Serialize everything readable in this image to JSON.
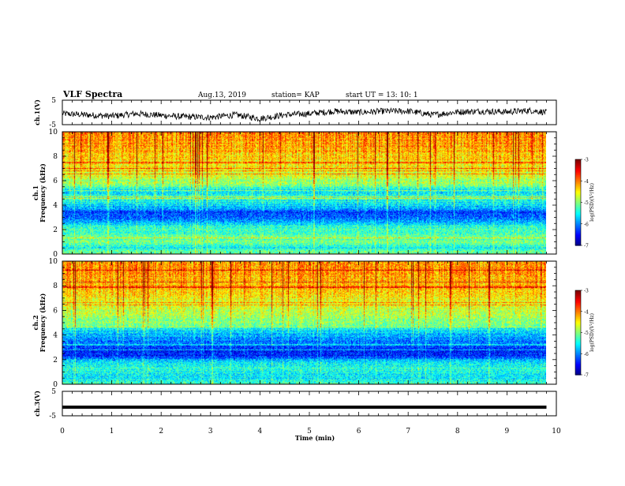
{
  "header": {
    "title": "VLF Spectra",
    "date": "Aug.13, 2019",
    "station": "station= KAP",
    "start_ut": "start  UT  =   13: 10: 1"
  },
  "chart_data": [
    {
      "type": "line",
      "name": "ch1-waveform",
      "ylabel": "ch.1(V)",
      "ylim": [
        -5,
        5
      ],
      "yticks": [
        5,
        -5
      ],
      "xlim": [
        0,
        10
      ],
      "x_extent_min": 9.8,
      "color": "#000000",
      "description_level": [
        [
          0.0,
          -0.5
        ],
        [
          0.5,
          -1.0
        ],
        [
          1.0,
          -1.5
        ],
        [
          1.5,
          -0.5
        ],
        [
          2.0,
          -1.2
        ],
        [
          2.5,
          -1.8
        ],
        [
          3.0,
          -2.0
        ],
        [
          3.5,
          -1.0
        ],
        [
          4.0,
          -2.5
        ],
        [
          4.5,
          -1.0
        ],
        [
          5.0,
          -0.5
        ],
        [
          5.5,
          0.5
        ],
        [
          6.0,
          0.0
        ],
        [
          6.5,
          0.5
        ],
        [
          7.0,
          0.5
        ],
        [
          7.5,
          -1.0
        ],
        [
          8.0,
          0.2
        ],
        [
          8.5,
          0.5
        ],
        [
          9.0,
          0.2
        ],
        [
          9.5,
          0.8
        ],
        [
          9.8,
          0.0
        ]
      ]
    },
    {
      "type": "heatmap",
      "name": "ch1-spectrogram",
      "ylabel": "ch.1",
      "ylabel2": "Frequency  (kHz)",
      "ylim": [
        0,
        10
      ],
      "yticks": [
        0,
        2,
        4,
        6,
        8,
        10
      ],
      "xlim": [
        0,
        10
      ],
      "x_extent_min": 9.8,
      "colorbar": {
        "ticks": [
          -3,
          -4,
          -5,
          -6,
          -7
        ],
        "label": "log(PSD)(V²/Hz)",
        "range": [
          -7,
          -3
        ]
      },
      "band_profile": [
        {
          "f": 0.0,
          "level": -5.0
        },
        {
          "f": 0.6,
          "level": -5.5
        },
        {
          "f": 1.0,
          "level": -5.1
        },
        {
          "f": 1.5,
          "level": -5.2
        },
        {
          "f": 2.2,
          "level": -5.3
        },
        {
          "f": 2.8,
          "level": -5.9
        },
        {
          "f": 3.4,
          "level": -6.3
        },
        {
          "f": 4.0,
          "level": -5.6
        },
        {
          "f": 4.6,
          "level": -5.3
        },
        {
          "f": 5.2,
          "level": -5.6
        },
        {
          "f": 5.8,
          "level": -4.9
        },
        {
          "f": 7.0,
          "level": -4.5
        },
        {
          "f": 8.5,
          "level": -4.2
        },
        {
          "f": 10.0,
          "level": -4.0
        }
      ]
    },
    {
      "type": "heatmap",
      "name": "ch2-spectrogram",
      "ylabel": "ch.2",
      "ylabel2": "Frequency  (kHz)",
      "ylim": [
        0,
        10
      ],
      "yticks": [
        0,
        2,
        4,
        6,
        8,
        10
      ],
      "xlim": [
        0,
        10
      ],
      "x_extent_min": 9.8,
      "colorbar": {
        "ticks": [
          -3,
          -4,
          -5,
          -6,
          -7
        ],
        "label": "log(PSD)(V²/Hz)",
        "range": [
          -7,
          -3
        ]
      },
      "band_profile": [
        {
          "f": 0.0,
          "level": -5.2
        },
        {
          "f": 0.6,
          "level": -5.6
        },
        {
          "f": 1.2,
          "level": -5.4
        },
        {
          "f": 1.8,
          "level": -5.5
        },
        {
          "f": 2.4,
          "level": -6.4
        },
        {
          "f": 3.0,
          "level": -6.3
        },
        {
          "f": 3.6,
          "level": -6.0
        },
        {
          "f": 4.2,
          "level": -5.7
        },
        {
          "f": 5.0,
          "level": -5.0
        },
        {
          "f": 6.0,
          "level": -4.7
        },
        {
          "f": 7.5,
          "level": -4.3
        },
        {
          "f": 10.0,
          "level": -4.0
        }
      ]
    },
    {
      "type": "line",
      "name": "ch3-waveform",
      "ylabel": "ch.3(V)",
      "ylim": [
        -5,
        5
      ],
      "yticks": [
        5,
        -5
      ],
      "xlim": [
        0,
        10
      ],
      "x_extent_min": 9.8,
      "level": -1.5,
      "color": "#000000"
    }
  ],
  "xaxis": {
    "label": "Time  (min)",
    "ticks": [
      0,
      1,
      2,
      3,
      4,
      5,
      6,
      7,
      8,
      9,
      10
    ]
  },
  "colors": {
    "jet": [
      "#00007f",
      "#0000ff",
      "#007fff",
      "#00ffff",
      "#7fff7f",
      "#ffff00",
      "#ff7f00",
      "#ff0000",
      "#7f0000"
    ]
  }
}
